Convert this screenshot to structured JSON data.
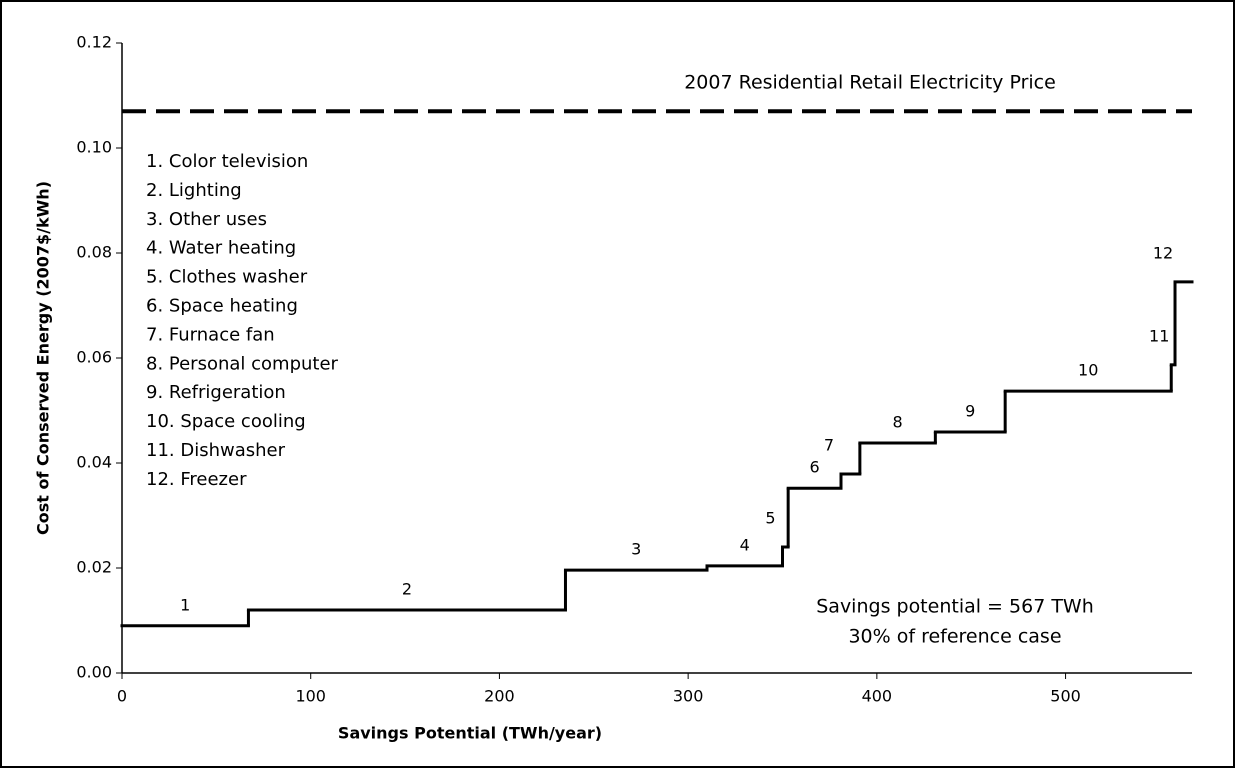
{
  "chart_data": {
    "type": "step",
    "xlabel": "Savings Potential (TWh/year)",
    "ylabel": "Cost of Conserved Energy (2007$/kWh)",
    "categories": [
      "1",
      "2",
      "3",
      "4",
      "5",
      "6",
      "7",
      "8",
      "9",
      "10",
      "11",
      "12"
    ],
    "widths": [
      67,
      168,
      75,
      40,
      3,
      28,
      10,
      40,
      37,
      88,
      2,
      9
    ],
    "values": [
      0.009,
      0.012,
      0.0196,
      0.0204,
      0.024,
      0.0352,
      0.0379,
      0.0438,
      0.0459,
      0.0537,
      0.0587,
      0.0745
    ],
    "color": "#000000",
    "legend_items": [
      "1.  Color television",
      "2.  Lighting",
      "3.  Other uses",
      "4.  Water heating",
      "5.  Clothes washer",
      "6.  Space heating",
      "7.  Furnace fan",
      "8.  Personal computer",
      "9.  Refrigeration",
      "10. Space cooling",
      "11. Dishwasher",
      "12. Freezer"
    ],
    "reference_line": {
      "label": "2007 Residential Retail Electricity Price",
      "value": 0.107
    },
    "annotations": [
      "Savings potential = 567 TWh",
      "30% of reference case"
    ],
    "xlim": [
      0,
      567
    ],
    "xticks": [
      0,
      100,
      200,
      300,
      400,
      500
    ],
    "ylim": [
      0,
      0.12
    ],
    "yticks": [
      {
        "value": 0,
        "label": "0.00"
      },
      {
        "value": 0.02,
        "label": "0.02"
      },
      {
        "value": 0.04,
        "label": "0.04"
      },
      {
        "value": 0.06,
        "label": "0.06"
      },
      {
        "value": 0.08,
        "label": "0.08"
      },
      {
        "value": 0.1,
        "label": "0.10"
      },
      {
        "value": 0.12,
        "label": "0.12"
      }
    ]
  }
}
